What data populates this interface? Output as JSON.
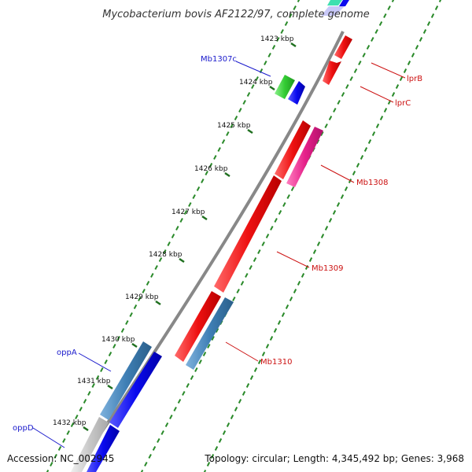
{
  "title": "Mycobacterium bovis AF2122/97, complete genome",
  "footer": {
    "accession": "Accession: NC_002945",
    "summary": "Topology: circular; Length: 4,345,492 bp; Genes: 3,968"
  },
  "ticks": [
    "1423 kbp",
    "1424 kbp",
    "1425 kbp",
    "1426 kbp",
    "1427 kbp",
    "1428 kbp",
    "1429 kbp",
    "1430 kbp",
    "1431 kbp",
    "1432 kbp"
  ],
  "genes": {
    "Mb1307c": "Mb1307c",
    "oppA": "oppA",
    "oppD": "oppD",
    "lprB": "lprB",
    "lprC": "lprC",
    "Mb1308": "Mb1308",
    "Mb1309": "Mb1309",
    "Mb1310": "Mb1310"
  },
  "colors": {
    "reverse_label": "#1a1acc",
    "forward_label": "#cc1111",
    "red": "#ee1111",
    "pink": "#e6218a",
    "blue": "#0a0aee",
    "steel": "#3f7fb5",
    "green": "#33cc33",
    "backbone": "#888888",
    "dots": "#2a8a2a"
  }
}
